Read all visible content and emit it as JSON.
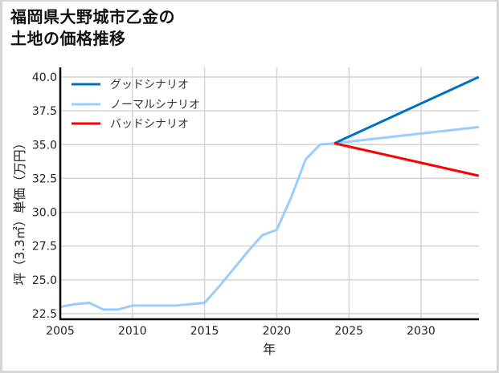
{
  "title_line1": "福岡県大野城市乙金の",
  "title_line2": "土地の価格推移",
  "chart_data": {
    "type": "line",
    "title": "福岡県大野城市乙金の土地の価格推移",
    "xlabel": "年",
    "ylabel": "坪（3.3㎡）単価（万円）",
    "xlim": [
      2005,
      2034
    ],
    "ylim": [
      22.1,
      40.3
    ],
    "xticks": [
      2005,
      2010,
      2015,
      2020,
      2025,
      2030
    ],
    "yticks": [
      22.5,
      25.0,
      27.5,
      30.0,
      32.5,
      35.0,
      37.5,
      40.0
    ],
    "grid": true,
    "legend_position": "upper left",
    "series": [
      {
        "name": "グッドシナリオ",
        "color": "#0070c0",
        "x": [
          2024,
          2034
        ],
        "y": [
          35.1,
          40.0
        ]
      },
      {
        "name": "ノーマルシナリオ",
        "color": "#99ccff",
        "x": [
          2005,
          2006,
          2007,
          2008,
          2009,
          2010,
          2011,
          2012,
          2013,
          2014,
          2015,
          2016,
          2017,
          2018,
          2019,
          2020,
          2021,
          2022,
          2023,
          2024,
          2034
        ],
        "y": [
          23.0,
          23.2,
          23.3,
          22.8,
          22.8,
          23.1,
          23.1,
          23.1,
          23.1,
          23.2,
          23.3,
          24.5,
          25.8,
          27.1,
          28.3,
          28.7,
          31.1,
          33.9,
          35.0,
          35.1,
          36.3
        ]
      },
      {
        "name": "バッドシナリオ",
        "color": "#ff0000",
        "x": [
          2024,
          2034
        ],
        "y": [
          35.1,
          32.7
        ]
      }
    ]
  }
}
